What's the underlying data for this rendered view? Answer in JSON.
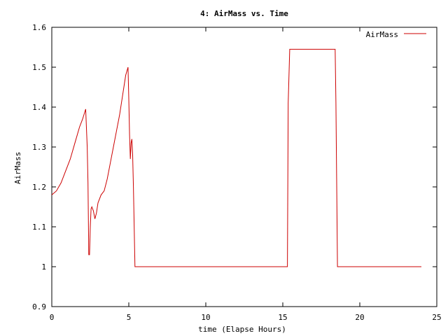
{
  "chart_data": {
    "type": "line",
    "title": "4: AirMass vs. Time",
    "xlabel": "time (Elapse Hours)",
    "ylabel": "AirMass",
    "xlim": [
      0,
      25
    ],
    "ylim": [
      0.9,
      1.6
    ],
    "x_ticks": [
      0,
      5,
      10,
      15,
      20,
      25
    ],
    "x_tick_labels": [
      "0",
      "5",
      "10",
      "15",
      "20",
      "25"
    ],
    "y_ticks": [
      0.9,
      1.0,
      1.1,
      1.2,
      1.3,
      1.4,
      1.5,
      1.6
    ],
    "y_tick_labels": [
      "0.9",
      "1",
      "1.1",
      "1.2",
      "1.3",
      "1.4",
      "1.5",
      "1.6"
    ],
    "grid": false,
    "legend_position": "top-right",
    "series": [
      {
        "name": "AirMass",
        "color": "#cc0000",
        "x": [
          0.0,
          0.3,
          0.6,
          0.9,
          1.2,
          1.5,
          1.8,
          2.0,
          2.2,
          2.3,
          2.35,
          2.4,
          2.45,
          2.5,
          2.55,
          2.6,
          2.7,
          2.8,
          2.9,
          3.0,
          3.2,
          3.4,
          3.6,
          3.8,
          4.0,
          4.2,
          4.4,
          4.6,
          4.8,
          4.95,
          5.0,
          5.05,
          5.1,
          5.15,
          5.2,
          5.25,
          5.3,
          5.4,
          6.0,
          8.0,
          10.0,
          12.0,
          14.0,
          15.3,
          15.35,
          15.45,
          16.0,
          17.0,
          18.0,
          18.4,
          18.45,
          18.55,
          19.0,
          20.0,
          22.0,
          24.0
        ],
        "y": [
          1.18,
          1.19,
          1.21,
          1.24,
          1.27,
          1.31,
          1.35,
          1.37,
          1.395,
          1.3,
          1.21,
          1.03,
          1.03,
          1.1,
          1.145,
          1.15,
          1.14,
          1.12,
          1.135,
          1.16,
          1.18,
          1.19,
          1.22,
          1.26,
          1.3,
          1.34,
          1.38,
          1.43,
          1.48,
          1.5,
          1.42,
          1.33,
          1.27,
          1.31,
          1.32,
          1.28,
          1.2,
          1.0,
          1.0,
          1.0,
          1.0,
          1.0,
          1.0,
          1.0,
          1.41,
          1.545,
          1.545,
          1.545,
          1.545,
          1.545,
          1.41,
          1.0,
          1.0,
          1.0,
          1.0,
          1.0
        ]
      }
    ]
  }
}
